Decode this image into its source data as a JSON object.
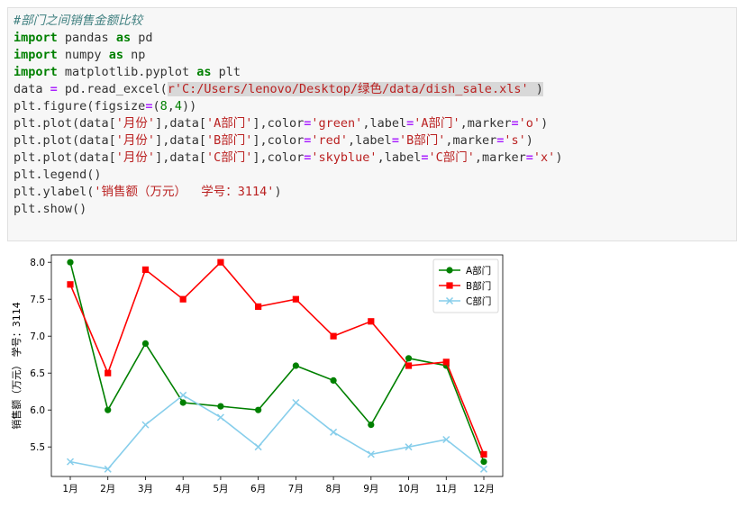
{
  "code": {
    "comment": "#部门之间销售金额比较",
    "kw_import": "import",
    "kw_as": "as",
    "mod_pandas": "pandas",
    "alias_pd": "pd",
    "mod_numpy": "numpy",
    "alias_np": "np",
    "mod_pyplot": "matplotlib.pyplot",
    "alias_plt": "plt",
    "line4_pre": "data ",
    "eq": "=",
    "line4_mid": " pd.read_excel(",
    "line4_str": "r'C:/Users/lenovo/Desktop/绿色/data/dish_sale.xls'",
    "line4_end": " )",
    "line5_pre": "plt.figure(figsize",
    "line5_tuple_open": "(",
    "line5_n1": "8",
    "line5_comma": ",",
    "line5_n2": "4",
    "line5_end": "))",
    "plot_pre": "plt.plot(data[",
    "str_month": "'月份'",
    "mid1": "],data[",
    "str_a": "'A部门'",
    "str_b": "'B部门'",
    "str_c": "'C部门'",
    "mid2": "],color",
    "str_green": "'green'",
    "str_red": "'red'",
    "str_skyblue": "'skyblue'",
    "mid3": ",label",
    "mid4": ",marker",
    "str_o": "'o'",
    "str_s": "'s'",
    "str_x": "'x'",
    "close_paren": ")",
    "comma": ",",
    "line9": "plt.legend()",
    "line10_pre": "plt.ylabel(",
    "line10_str": "'销售额（万元）  学号：3114'",
    "line10_end": ")",
    "line11": "plt.show()"
  },
  "chart_data": {
    "type": "line",
    "categories": [
      "1月",
      "2月",
      "3月",
      "4月",
      "5月",
      "6月",
      "7月",
      "8月",
      "9月",
      "10月",
      "11月",
      "12月"
    ],
    "ylabel": "销售额（万元）  学号：3114",
    "xlabel": "",
    "title": "",
    "ylim": [
      5.1,
      8.1
    ],
    "yticks": [
      "5.5",
      "6.0",
      "6.5",
      "7.0",
      "7.5",
      "8.0"
    ],
    "ytick_values": [
      5.5,
      6.0,
      6.5,
      7.0,
      7.5,
      8.0
    ],
    "legend_position": "top-right",
    "grid": false,
    "series": [
      {
        "name": "A部门",
        "color": "#008000",
        "marker": "o",
        "values": [
          8.0,
          6.0,
          6.9,
          6.1,
          6.05,
          6.0,
          6.6,
          6.4,
          5.8,
          6.7,
          6.6,
          5.3
        ]
      },
      {
        "name": "B部门",
        "color": "#ff0000",
        "marker": "s",
        "values": [
          7.7,
          6.5,
          7.9,
          7.5,
          8.0,
          7.4,
          7.5,
          7.0,
          7.2,
          6.6,
          6.65,
          5.4
        ]
      },
      {
        "name": "C部门",
        "color": "#87ceeb",
        "marker": "x",
        "values": [
          5.3,
          5.2,
          5.8,
          6.2,
          5.9,
          5.5,
          6.1,
          5.7,
          5.4,
          5.5,
          5.6,
          5.2
        ]
      }
    ]
  }
}
